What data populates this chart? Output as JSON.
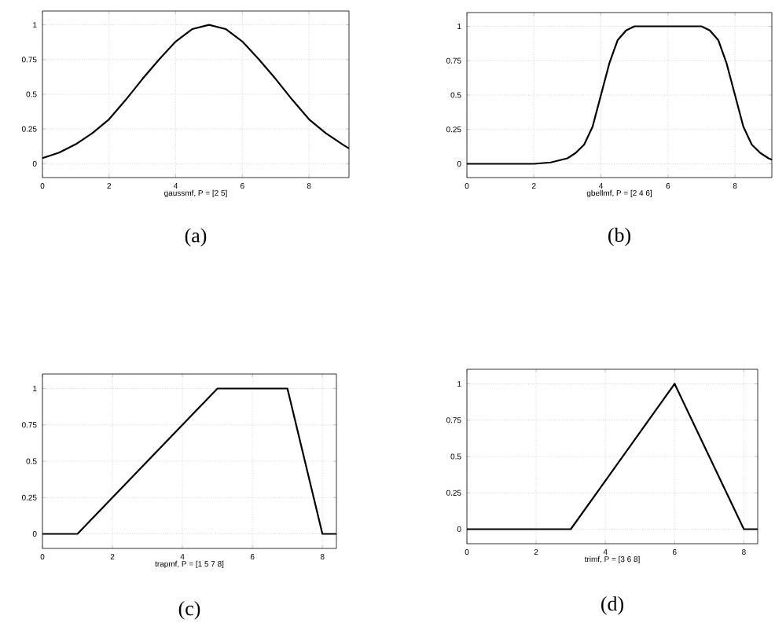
{
  "chart_data": [
    {
      "type": "line",
      "xlabel": "gaussmf, P = [2 5]",
      "annotations": [
        "(a)"
      ],
      "xlim": [
        0,
        9.2
      ],
      "ylim": [
        -0.1,
        1.1
      ],
      "xticks": [
        0,
        2,
        4,
        6,
        8
      ],
      "yticks": [
        0,
        0.25,
        0.5,
        0.75,
        1
      ],
      "grid": true,
      "line_style": "solid",
      "series": [
        {
          "color": "#000000",
          "x": [
            0,
            0.5,
            1,
            1.5,
            2,
            2.5,
            3,
            3.5,
            4,
            4.5,
            5,
            5.5,
            6,
            6.5,
            7,
            7.5,
            8,
            8.5,
            9,
            9.2
          ],
          "values": [
            0.04,
            0.08,
            0.14,
            0.22,
            0.32,
            0.46,
            0.61,
            0.75,
            0.88,
            0.97,
            1,
            0.97,
            0.88,
            0.75,
            0.61,
            0.46,
            0.32,
            0.22,
            0.14,
            0.11
          ]
        }
      ]
    },
    {
      "type": "line",
      "xlabel": "gbellmf, P = [2 4 6]",
      "annotations": [
        "(b)"
      ],
      "xlim": [
        0,
        9.1
      ],
      "ylim": [
        -0.1,
        1.1
      ],
      "xticks": [
        0,
        2,
        4,
        6,
        8
      ],
      "yticks": [
        0,
        0.25,
        0.5,
        0.75,
        1
      ],
      "grid": true,
      "line_style": "solid",
      "series": [
        {
          "color": "#000000",
          "x": [
            0,
            1,
            2,
            2.5,
            3,
            3.25,
            3.5,
            3.75,
            4,
            4.25,
            4.5,
            4.75,
            5,
            5.5,
            6,
            6.5,
            7,
            7.25,
            7.5,
            7.75,
            8,
            8.25,
            8.5,
            8.75,
            9,
            9.1
          ],
          "values": [
            0,
            0,
            0,
            0.01,
            0.04,
            0.08,
            0.14,
            0.27,
            0.5,
            0.73,
            0.9,
            0.97,
            1,
            1,
            1,
            1,
            1,
            0.97,
            0.9,
            0.73,
            0.5,
            0.27,
            0.14,
            0.08,
            0.04,
            0.03
          ]
        }
      ]
    },
    {
      "type": "line",
      "xlabel": "trapmf, P = [1 5 7 8]",
      "annotations": [
        "(c)"
      ],
      "xlim": [
        0,
        8.4
      ],
      "ylim": [
        -0.1,
        1.1
      ],
      "xticks": [
        0,
        2,
        4,
        6,
        8
      ],
      "yticks": [
        0,
        0.25,
        0.5,
        0.75,
        1
      ],
      "grid": true,
      "line_style": "solid",
      "series": [
        {
          "color": "#000000",
          "x": [
            0,
            1,
            5,
            7,
            8,
            8.4
          ],
          "values": [
            0,
            0,
            1,
            1,
            0,
            0
          ]
        }
      ]
    },
    {
      "type": "line",
      "xlabel": "trimf, P = [3 6 8]",
      "annotations": [
        "(d)"
      ],
      "xlim": [
        0,
        8.4
      ],
      "ylim": [
        -0.1,
        1.1
      ],
      "xticks": [
        0,
        2,
        4,
        6,
        8
      ],
      "yticks": [
        0,
        0.25,
        0.5,
        0.75,
        1
      ],
      "grid": true,
      "line_style": "solid",
      "series": [
        {
          "color": "#000000",
          "x": [
            0,
            3,
            6,
            8,
            8.4
          ],
          "values": [
            0,
            0,
            1,
            0,
            0
          ]
        }
      ]
    }
  ]
}
